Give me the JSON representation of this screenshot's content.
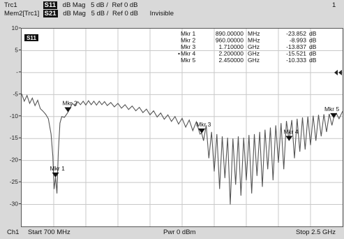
{
  "header": {
    "row1": {
      "trace": "Trc1",
      "param": "S11",
      "format": "dB Mag",
      "scale": "5 dB /",
      "ref": "Ref 0 dB",
      "channel_num": "1"
    },
    "row2": {
      "trace": "Mem2[Trc1]",
      "param": "S21",
      "format": "dB Mag",
      "scale": "5 dB /",
      "ref": "Ref 0 dB",
      "state": "Invisible"
    }
  },
  "trace_tag": "S11",
  "footer": {
    "channel": "Ch1",
    "start": "Start  700 MHz",
    "power": "Pwr  0 dBm",
    "stop": "Stop  2.5 GHz"
  },
  "colors": {
    "trace": "#555555",
    "grid": "#c8c8c8",
    "marker": "#111111",
    "background": "#ffffff",
    "frame": "#d9d9d9"
  },
  "chart_data": {
    "type": "line",
    "title": "",
    "xlabel": "",
    "ylabel": "",
    "x_unit": "GHz",
    "x_range": [
      0.7,
      2.5
    ],
    "ylim": [
      -35,
      10
    ],
    "y_ticks": [
      10,
      5,
      0,
      -5,
      -10,
      -15,
      -20,
      -25,
      -30
    ],
    "y_tick_labels": [
      "10",
      "5",
      "-",
      "-5",
      "-10",
      "-15",
      "-20",
      "-25",
      "-30"
    ],
    "grid": true,
    "reference_level_marker": 0,
    "markers": [
      {
        "name": "Mkr 1",
        "x": 0.89,
        "y": -23.852,
        "x_text": "890.00000",
        "x_unit": "MHz",
        "y_text": "-23.852",
        "y_unit": "dB",
        "active": false
      },
      {
        "name": "Mkr 2",
        "x": 0.96,
        "y": -8.993,
        "x_text": "960.00000",
        "x_unit": "MHz",
        "y_text": "-8.993",
        "y_unit": "dB",
        "active": false
      },
      {
        "name": "Mkr 3",
        "x": 1.71,
        "y": -13.837,
        "x_text": "1.710000",
        "x_unit": "GHz",
        "y_text": "-13.837",
        "y_unit": "dB",
        "active": false
      },
      {
        "name": "Mkr 4",
        "x": 2.2,
        "y": -15.521,
        "x_text": "2.200000",
        "x_unit": "GHz",
        "y_text": "-15.521",
        "y_unit": "dB",
        "active": true
      },
      {
        "name": "Mkr 5",
        "x": 2.45,
        "y": -10.333,
        "x_text": "2.450000",
        "x_unit": "GHz",
        "y_text": "-10.333",
        "y_unit": "dB",
        "active": false
      }
    ],
    "series": [
      {
        "points": [
          [
            0.7,
            -4.8
          ],
          [
            0.715,
            -6.5
          ],
          [
            0.73,
            -5.2
          ],
          [
            0.745,
            -7.0
          ],
          [
            0.76,
            -5.8
          ],
          [
            0.775,
            -7.5
          ],
          [
            0.79,
            -6.3
          ],
          [
            0.805,
            -8.2
          ],
          [
            0.82,
            -8.8
          ],
          [
            0.835,
            -9.5
          ],
          [
            0.85,
            -10.5
          ],
          [
            0.865,
            -14.0
          ],
          [
            0.875,
            -19.0
          ],
          [
            0.882,
            -26.5
          ],
          [
            0.89,
            -23.8
          ],
          [
            0.898,
            -27.5
          ],
          [
            0.906,
            -18.0
          ],
          [
            0.915,
            -11.5
          ],
          [
            0.925,
            -10.0
          ],
          [
            0.94,
            -10.2
          ],
          [
            0.955,
            -9.3
          ],
          [
            0.96,
            -9.0
          ],
          [
            0.97,
            -8.2
          ],
          [
            0.985,
            -7.0
          ],
          [
            1.0,
            -7.6
          ],
          [
            1.015,
            -6.6
          ],
          [
            1.03,
            -7.3
          ],
          [
            1.045,
            -6.5
          ],
          [
            1.06,
            -7.4
          ],
          [
            1.075,
            -6.4
          ],
          [
            1.09,
            -7.3
          ],
          [
            1.105,
            -6.5
          ],
          [
            1.12,
            -7.4
          ],
          [
            1.135,
            -6.5
          ],
          [
            1.15,
            -7.3
          ],
          [
            1.165,
            -6.6
          ],
          [
            1.18,
            -7.5
          ],
          [
            1.2,
            -6.8
          ],
          [
            1.22,
            -7.8
          ],
          [
            1.24,
            -7.0
          ],
          [
            1.26,
            -8.1
          ],
          [
            1.28,
            -7.3
          ],
          [
            1.3,
            -8.4
          ],
          [
            1.32,
            -7.6
          ],
          [
            1.34,
            -8.7
          ],
          [
            1.36,
            -7.9
          ],
          [
            1.38,
            -9.1
          ],
          [
            1.4,
            -8.3
          ],
          [
            1.42,
            -9.6
          ],
          [
            1.44,
            -8.7
          ],
          [
            1.46,
            -10.1
          ],
          [
            1.48,
            -9.2
          ],
          [
            1.5,
            -10.6
          ],
          [
            1.52,
            -9.6
          ],
          [
            1.54,
            -11.1
          ],
          [
            1.56,
            -10.0
          ],
          [
            1.58,
            -11.7
          ],
          [
            1.6,
            -10.4
          ],
          [
            1.62,
            -12.4
          ],
          [
            1.64,
            -10.8
          ],
          [
            1.66,
            -13.2
          ],
          [
            1.68,
            -11.2
          ],
          [
            1.7,
            -14.0
          ],
          [
            1.71,
            -13.8
          ],
          [
            1.72,
            -15.5
          ],
          [
            1.735,
            -12.0
          ],
          [
            1.75,
            -19.5
          ],
          [
            1.765,
            -13.5
          ],
          [
            1.78,
            -22.5
          ],
          [
            1.795,
            -14.0
          ],
          [
            1.81,
            -26.5
          ],
          [
            1.825,
            -14.5
          ],
          [
            1.84,
            -24.0
          ],
          [
            1.855,
            -14.8
          ],
          [
            1.87,
            -30.0
          ],
          [
            1.885,
            -15.0
          ],
          [
            1.9,
            -25.5
          ],
          [
            1.915,
            -14.5
          ],
          [
            1.93,
            -28.0
          ],
          [
            1.945,
            -14.8
          ],
          [
            1.96,
            -24.5
          ],
          [
            1.975,
            -14.2
          ],
          [
            1.99,
            -27.5
          ],
          [
            2.005,
            -14.0
          ],
          [
            2.02,
            -23.5
          ],
          [
            2.035,
            -13.5
          ],
          [
            2.05,
            -26.0
          ],
          [
            2.065,
            -13.0
          ],
          [
            2.08,
            -22.0
          ],
          [
            2.095,
            -12.5
          ],
          [
            2.11,
            -24.5
          ],
          [
            2.125,
            -12.0
          ],
          [
            2.14,
            -20.5
          ],
          [
            2.155,
            -11.5
          ],
          [
            2.17,
            -22.0
          ],
          [
            2.185,
            -11.0
          ],
          [
            2.2,
            -15.5
          ],
          [
            2.215,
            -10.8
          ],
          [
            2.23,
            -19.5
          ],
          [
            2.245,
            -10.5
          ],
          [
            2.26,
            -18.0
          ],
          [
            2.275,
            -10.2
          ],
          [
            2.29,
            -17.5
          ],
          [
            2.305,
            -10.0
          ],
          [
            2.32,
            -16.5
          ],
          [
            2.335,
            -9.8
          ],
          [
            2.35,
            -15.5
          ],
          [
            2.365,
            -9.6
          ],
          [
            2.38,
            -14.5
          ],
          [
            2.395,
            -9.5
          ],
          [
            2.41,
            -13.5
          ],
          [
            2.425,
            -9.4
          ],
          [
            2.44,
            -12.0
          ],
          [
            2.45,
            -10.3
          ],
          [
            2.465,
            -9.3
          ],
          [
            2.48,
            -10.5
          ],
          [
            2.5,
            -8.8
          ]
        ]
      }
    ]
  }
}
